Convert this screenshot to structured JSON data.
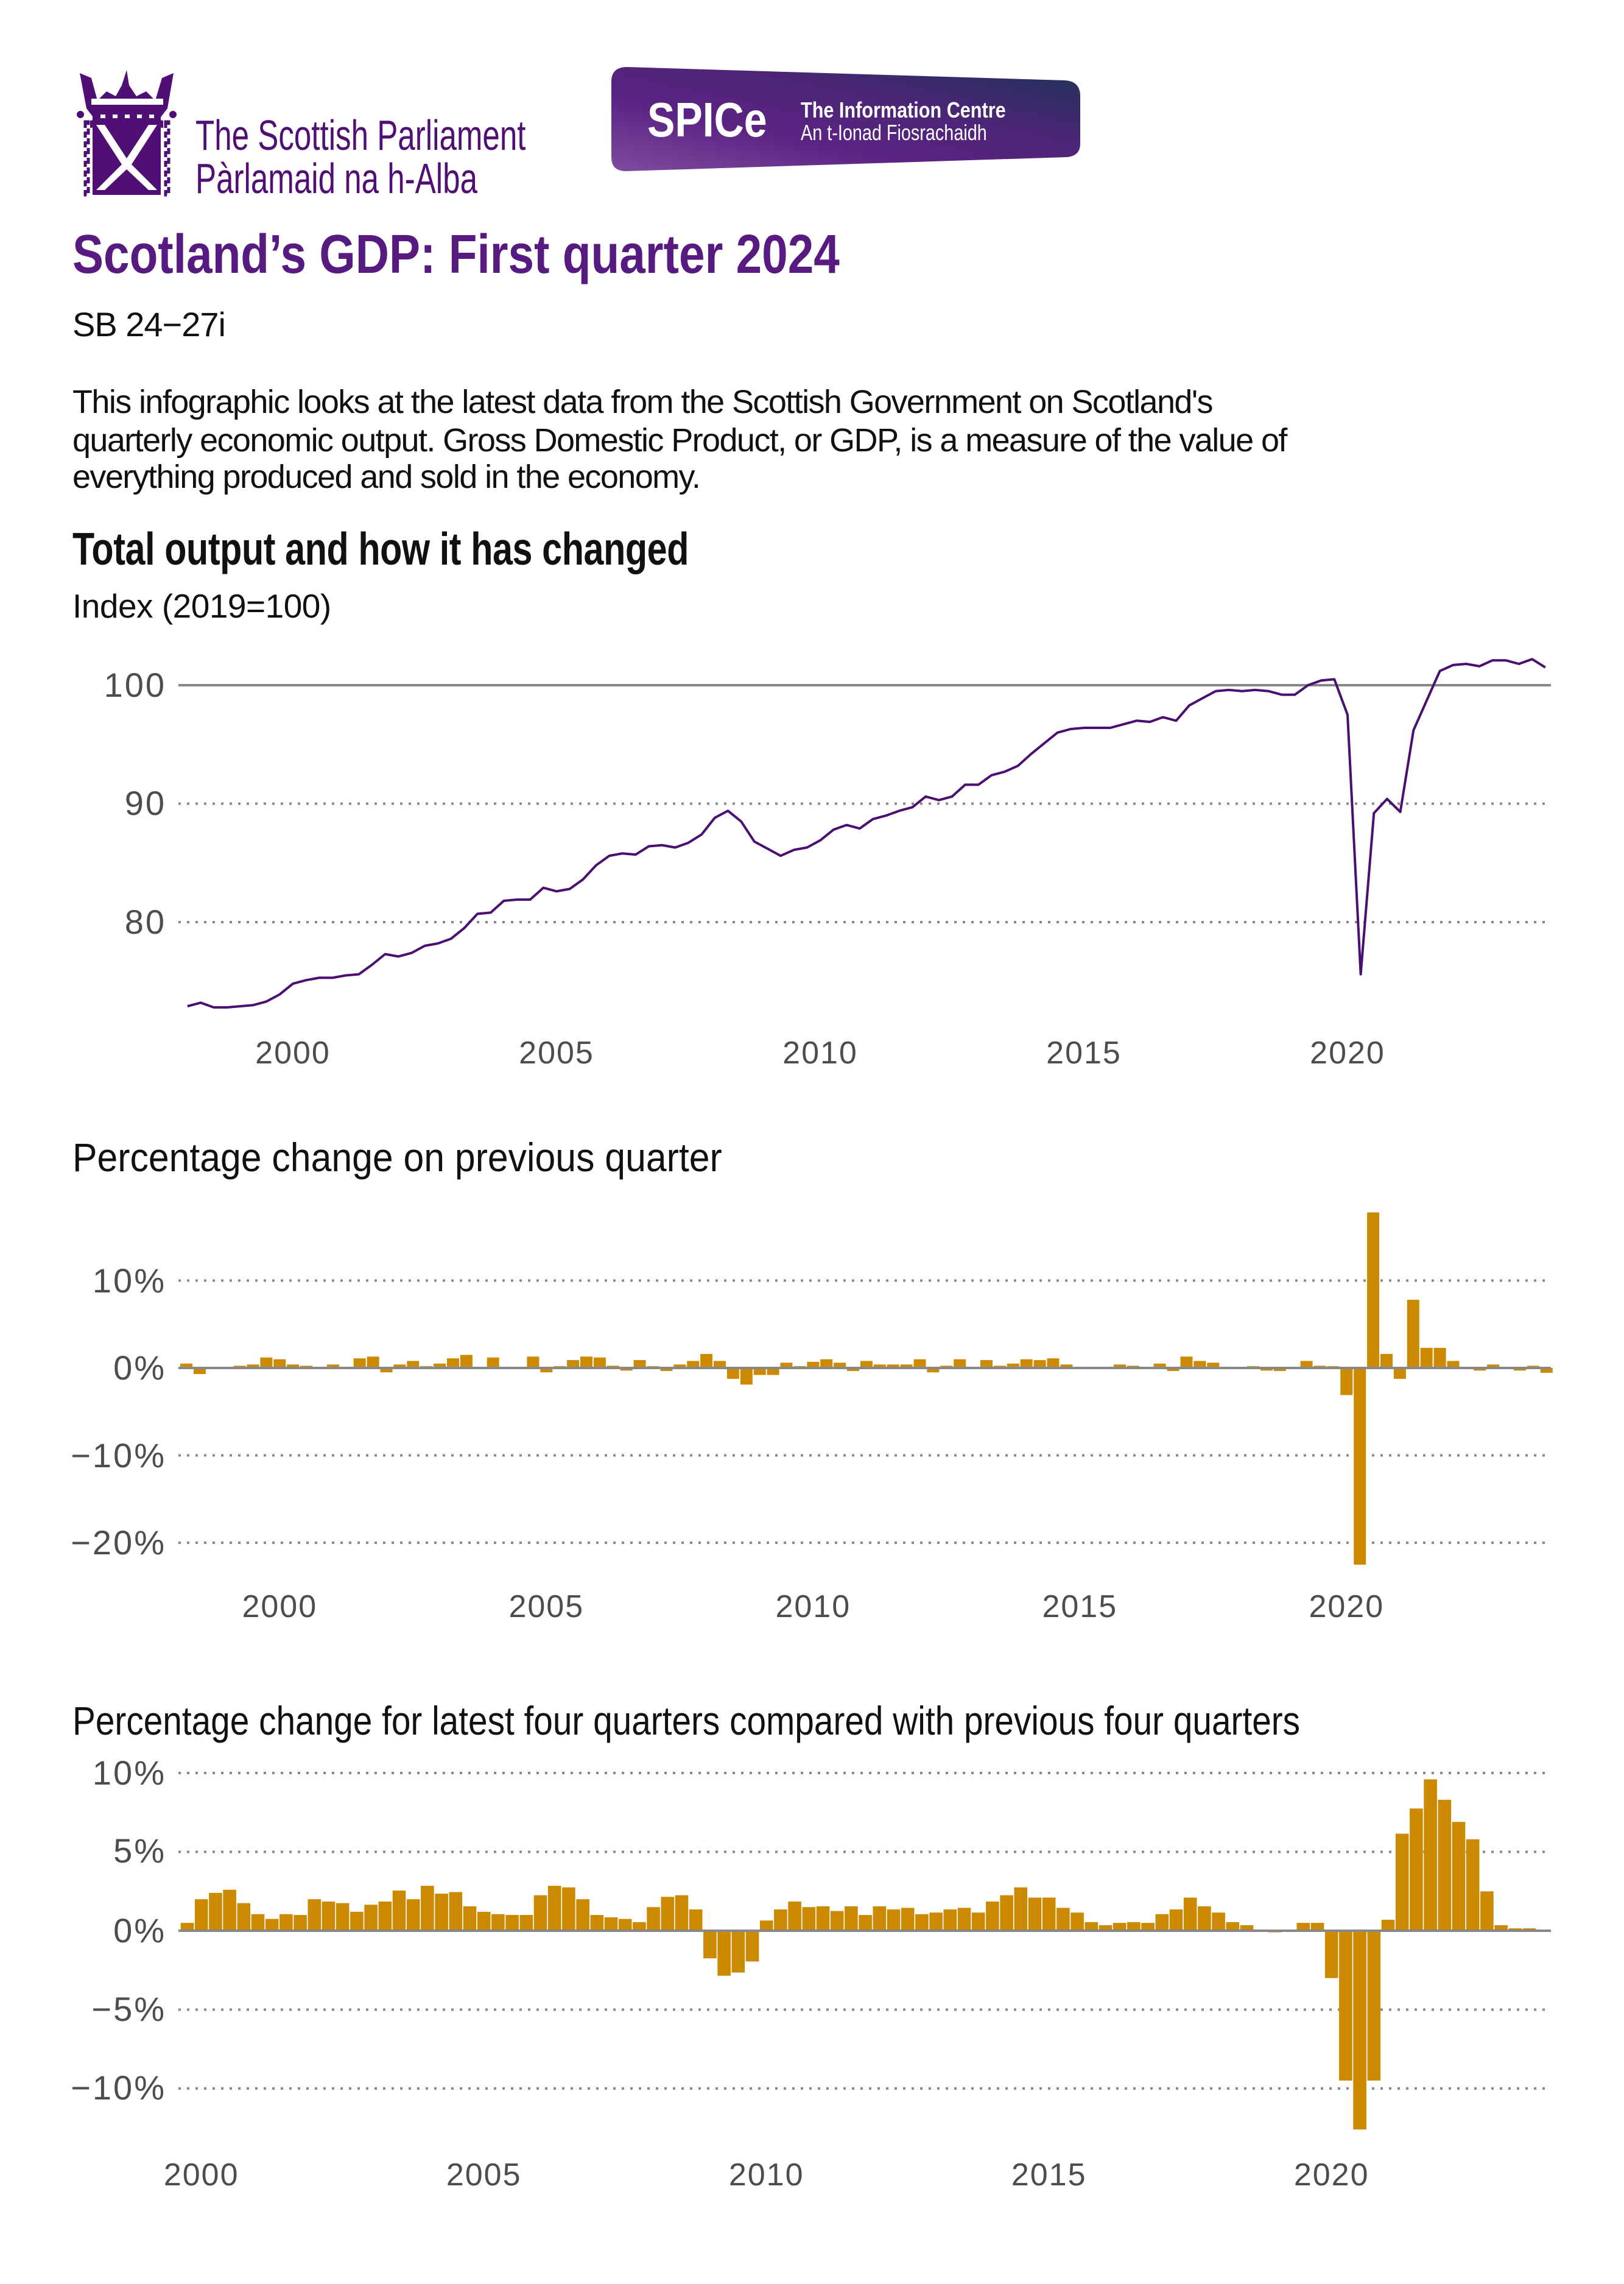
{
  "header": {
    "parliament_name_en": "The Scottish Parliament",
    "parliament_name_gd": "Pàrlamaid na h-Alba",
    "spice": {
      "logo_text": "SPICe",
      "tagline_en": "The Information Centre",
      "tagline_gd": "An t-Ionad Fiosrachaidh"
    }
  },
  "title": "Scotland’s GDP: First quarter 2024",
  "reference": "SB 24−27i",
  "intro_lines": [
    "This infographic looks at the latest data from the Scottish Government on Scotland's",
    "quarterly economic output. Gross Domestic Product, or GDP, is a measure of the value of",
    "everything produced and sold in the economy."
  ],
  "section_heading": "Total output and how it has changed",
  "colors": {
    "brand_purple": "#561a80",
    "line": "#4b0f72",
    "bars": "#cc8a00",
    "grid": "#888888",
    "text": "#4d4d4d"
  },
  "chart_data": [
    {
      "type": "line",
      "title": "",
      "ylabel": "Index (2019=100)",
      "x_start": "1998 Q1",
      "frequency": "quarterly",
      "ylim": [
        72,
        103
      ],
      "y_ticks": [
        "100",
        "90",
        "80"
      ],
      "y_tick_values": [
        100,
        90,
        80
      ],
      "reference_line": 100,
      "x_ticks": [
        "2000",
        "2005",
        "2010",
        "2015",
        "2020"
      ],
      "grid": "horizontal dotted",
      "values": [
        72.9,
        73.2,
        72.8,
        72.8,
        72.9,
        73.0,
        73.3,
        73.9,
        74.8,
        75.1,
        75.3,
        75.3,
        75.5,
        75.6,
        76.4,
        77.3,
        77.1,
        77.4,
        78.0,
        78.2,
        78.6,
        79.5,
        80.7,
        80.8,
        81.8,
        81.9,
        81.9,
        82.9,
        82.6,
        82.8,
        83.6,
        84.8,
        85.6,
        85.8,
        85.7,
        86.4,
        86.5,
        86.3,
        86.7,
        87.4,
        88.8,
        89.4,
        88.5,
        86.8,
        86.2,
        85.6,
        86.1,
        86.3,
        86.9,
        87.8,
        88.2,
        87.9,
        88.7,
        89.0,
        89.4,
        89.7,
        90.6,
        90.3,
        90.6,
        91.6,
        91.6,
        92.4,
        92.7,
        93.2,
        94.2,
        95.1,
        96.0,
        96.3,
        96.4,
        96.4,
        96.4,
        96.7,
        97.0,
        96.9,
        97.3,
        97.0,
        98.3,
        98.9,
        99.5,
        99.6,
        99.5,
        99.6,
        99.5,
        99.2,
        99.2,
        100.0,
        100.4,
        100.5,
        97.5,
        75.6,
        89.2,
        90.4,
        89.3,
        96.2,
        98.7,
        101.2,
        101.7,
        101.8,
        101.6,
        102.1,
        102.1,
        101.8,
        102.2,
        101.5
      ]
    },
    {
      "type": "bar",
      "title": "Percentage change on previous quarter",
      "x_start": "1998 Q2",
      "frequency": "quarterly",
      "unit": "%",
      "ylim": [
        -23,
        18
      ],
      "y_ticks": [
        "10%",
        "0%",
        "−10%",
        "−20%"
      ],
      "y_tick_values": [
        10,
        0,
        -10,
        -20
      ],
      "x_ticks": [
        "2000",
        "2005",
        "2010",
        "2015",
        "2020"
      ],
      "grid": "horizontal dotted",
      "values": [
        0.5,
        -0.7,
        0,
        0,
        0.25,
        0.4,
        1.2,
        1.0,
        0.4,
        0.25,
        0,
        0.4,
        0,
        1.1,
        1.3,
        -0.5,
        0.4,
        0.8,
        0.2,
        0.5,
        1.1,
        1.5,
        0,
        1.2,
        0,
        0,
        1.3,
        -0.5,
        0.2,
        0.9,
        1.3,
        1.2,
        0.25,
        -0.3,
        0.9,
        0.2,
        -0.35,
        0.4,
        0.8,
        1.6,
        0.8,
        -1.25,
        -1.9,
        -0.8,
        -0.8,
        0.6,
        0.2,
        0.7,
        1.0,
        0.6,
        -0.35,
        0.8,
        0.4,
        0.4,
        0.4,
        1.0,
        -0.5,
        0.25,
        1.0,
        0,
        0.9,
        0.25,
        0.5,
        1.0,
        0.9,
        1.1,
        0.4,
        0,
        0,
        0,
        0.4,
        0.25,
        0,
        0.5,
        -0.35,
        1.3,
        0.8,
        0.6,
        0,
        0,
        0.2,
        -0.3,
        -0.35,
        0,
        0.8,
        0.25,
        0.2,
        -3.1,
        -22.5,
        17.8,
        1.6,
        -1.25,
        7.8,
        2.3,
        2.3,
        0.8,
        0,
        -0.3,
        0.4,
        0,
        -0.3,
        0.25,
        -0.55
      ]
    },
    {
      "type": "bar",
      "title": "Percentage change for latest four quarters compared with previous four quarters",
      "x_start": "1999 Q4",
      "frequency": "quarterly",
      "unit": "%",
      "ylim": [
        -13,
        10
      ],
      "y_ticks": [
        "10%",
        "5%",
        "0%",
        "−5%",
        "−10%"
      ],
      "y_tick_values": [
        10,
        5,
        0,
        -5,
        -10
      ],
      "x_ticks": [
        "2000",
        "2005",
        "2010",
        "2015",
        "2020"
      ],
      "grid": "horizontal dotted",
      "values": [
        0.5,
        2.0,
        2.4,
        2.6,
        1.75,
        1.05,
        0.75,
        1.05,
        1.0,
        2.0,
        1.85,
        1.75,
        1.2,
        1.65,
        1.85,
        2.55,
        2.0,
        2.85,
        2.35,
        2.45,
        1.55,
        1.2,
        1.05,
        1.0,
        1.0,
        2.25,
        2.85,
        2.75,
        2.0,
        1.0,
        0.85,
        0.75,
        0.55,
        1.5,
        2.15,
        2.25,
        1.35,
        -1.75,
        -2.85,
        -2.65,
        -1.95,
        0.65,
        1.35,
        1.85,
        1.5,
        1.55,
        1.25,
        1.55,
        1.0,
        1.55,
        1.35,
        1.45,
        1.05,
        1.15,
        1.35,
        1.45,
        1.15,
        1.85,
        2.25,
        2.75,
        2.1,
        2.1,
        1.45,
        1.15,
        0.55,
        0.35,
        0.5,
        0.55,
        0.5,
        1.05,
        1.35,
        2.1,
        1.55,
        1.15,
        0.55,
        0.35,
        0,
        -0.1,
        0.05,
        0.5,
        0.5,
        -3.0,
        -9.5,
        -12.6,
        -9.5,
        0.7,
        6.15,
        7.75,
        9.6,
        8.3,
        6.9,
        5.8,
        2.5,
        0.35,
        0.15,
        0.15,
        0.05
      ]
    }
  ]
}
